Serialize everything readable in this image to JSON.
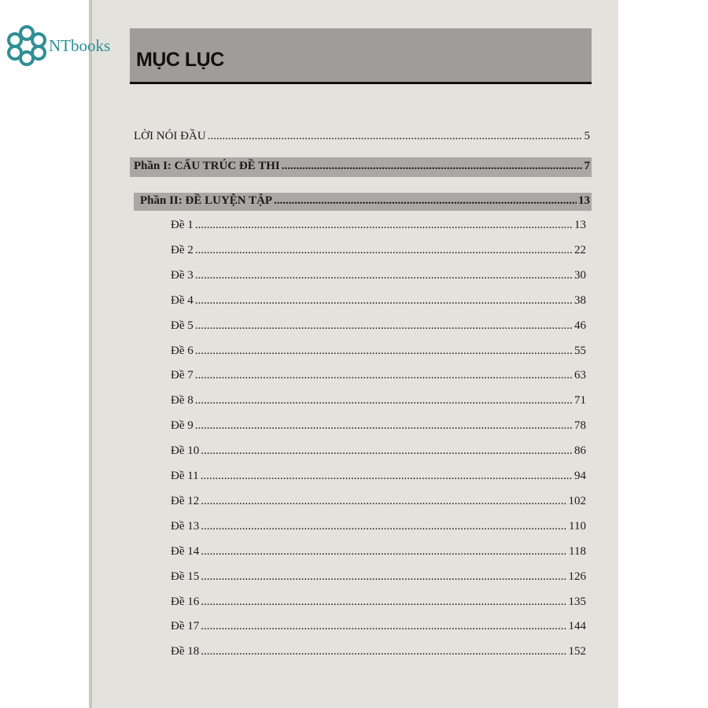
{
  "logo": {
    "text": "NTbooks",
    "color": "#2a8f96"
  },
  "title": "MỤC LỤC",
  "intro": {
    "label": "LỜI NÓI ĐẦU",
    "page": "5"
  },
  "parts": [
    {
      "label": "Phần I: CẤU TRÚC ĐỀ THI",
      "page": "7"
    },
    {
      "label": "Phần II: ĐỀ LUYỆN TẬP",
      "page": "13"
    }
  ],
  "entries": [
    {
      "label": "Đề 1",
      "page": "13"
    },
    {
      "label": "Đề 2",
      "page": "22"
    },
    {
      "label": "Đề 3",
      "page": "30"
    },
    {
      "label": "Đề 4",
      "page": "38"
    },
    {
      "label": "Đề 5",
      "page": "46"
    },
    {
      "label": "Đề 6",
      "page": "55"
    },
    {
      "label": "Đề 7",
      "page": "63"
    },
    {
      "label": "Đề 8",
      "page": "71"
    },
    {
      "label": "Đề 9",
      "page": "78"
    },
    {
      "label": "Đề 10",
      "page": "86"
    },
    {
      "label": "Đề 11",
      "page": "94"
    },
    {
      "label": "Đề 12",
      "page": "102"
    },
    {
      "label": "Đề 13",
      "page": "110"
    },
    {
      "label": "Đề 14",
      "page": "118"
    },
    {
      "label": "Đề 15",
      "page": "126"
    },
    {
      "label": "Đề 16",
      "page": "135"
    },
    {
      "label": "Đề 17",
      "page": "144"
    },
    {
      "label": "Đề 18",
      "page": "152"
    }
  ]
}
